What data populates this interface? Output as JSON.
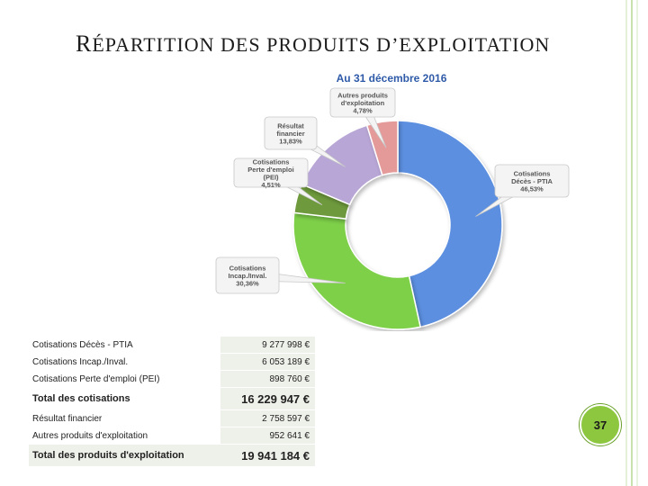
{
  "slide": {
    "title_cap": "R",
    "title_rest": "ÉPARTITION DES PRODUITS D’EXPLOITATION",
    "page_number": "37"
  },
  "chart_data": {
    "type": "pie",
    "donut": true,
    "title": "Au 31 décembre 2016",
    "slices": [
      {
        "name": "Cotisations Décès - PTIA",
        "value": 46.53,
        "label": "46,53%",
        "color": "#5b8fe0"
      },
      {
        "name": "Cotisations Incap./Inval.",
        "value": 30.36,
        "label": "30,36%",
        "color": "#7ed04a"
      },
      {
        "name": "Cotisations Perte d'emploi (PEI)",
        "value": 4.51,
        "label": "4,51%",
        "color": "#6e9a3e"
      },
      {
        "name": "Résultat financier",
        "value": 13.83,
        "label": "13,83%",
        "color": "#b8a6d6"
      },
      {
        "name": "Autres produits d'exploitation",
        "value": 4.78,
        "label": "4,78%",
        "color": "#e59a9a"
      }
    ]
  },
  "table": {
    "rows": [
      {
        "label": "Cotisations Décès - PTIA",
        "value": "9 277 998 €",
        "total": false
      },
      {
        "label": "Cotisations Incap./Inval.",
        "value": "6 053 189 €",
        "total": false
      },
      {
        "label": "Cotisations Perte d'emploi (PEI)",
        "value": "898 760 €",
        "total": false
      },
      {
        "label": "Total des cotisations",
        "value": "16 229 947 €",
        "total": true
      },
      {
        "label": "Résultat financier",
        "value": "2 758 597 €",
        "total": false
      },
      {
        "label": "Autres produits d'exploitation",
        "value": "952 641 €",
        "total": false
      },
      {
        "label": "Total des produits d'exploitation",
        "value": "19 941 184 €",
        "total": true
      }
    ]
  }
}
